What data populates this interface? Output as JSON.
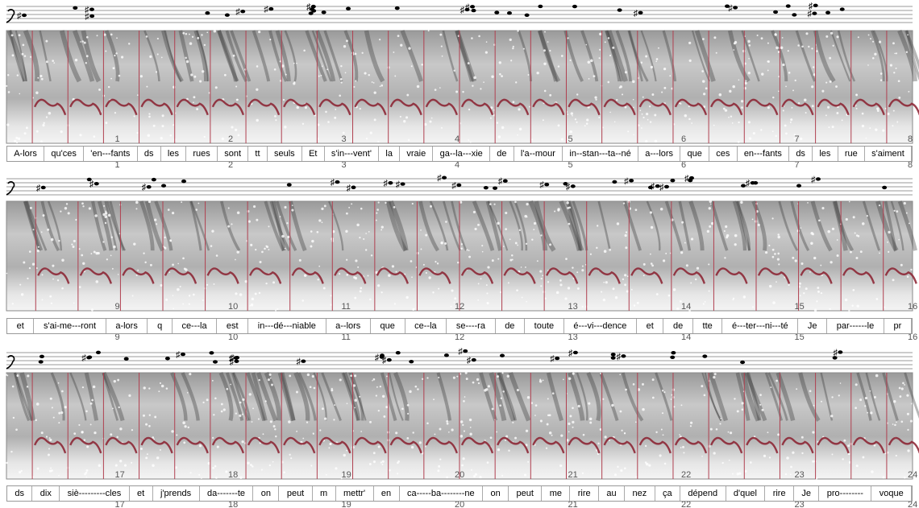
{
  "systems": [
    {
      "markers": [
        "1",
        "2",
        "3",
        "4",
        "5",
        "6",
        "7",
        "8"
      ],
      "lyrics": [
        "A-lors",
        "qu'ces",
        "'en---fants",
        "ds",
        "les",
        "rues",
        "sont",
        "tt",
        "seuls",
        "Et",
        "s'in---vent'",
        "la",
        "vraie",
        "ga--la---xie",
        "de",
        "l'a--mour",
        "in--stan---ta--né",
        "a---lors",
        "que",
        "ces",
        "en---fants",
        "ds",
        "les",
        "rue",
        "s'aiment"
      ]
    },
    {
      "markers": [
        "9",
        "10",
        "11",
        "12",
        "13",
        "14",
        "15",
        "16"
      ],
      "lyrics": [
        "et",
        "s'ai-me---ront",
        "a-lors",
        "q",
        "ce---la",
        "est",
        "in---dé---niable",
        "a--lors",
        "que",
        "ce--la",
        "se----ra",
        "de",
        "toute",
        "é---vi---dence",
        "et",
        "de",
        "tte",
        "é---ter---ni---té",
        "Je",
        "par------le",
        "pr"
      ]
    },
    {
      "markers": [
        "17",
        "18",
        "19",
        "20",
        "21",
        "22",
        "23",
        "24"
      ],
      "lyrics": [
        "ds",
        "dix",
        "siè---------cles",
        "et",
        "j'prends",
        "da-------te",
        "on",
        "peut",
        "m",
        "mettr'",
        "en",
        "ca-----ba--------ne",
        "on",
        "peut",
        "me",
        "rire",
        "au",
        "nez",
        "ça",
        "dépend",
        "d'quel",
        "rire",
        "Je",
        "pro--------",
        "voque"
      ]
    }
  ]
}
